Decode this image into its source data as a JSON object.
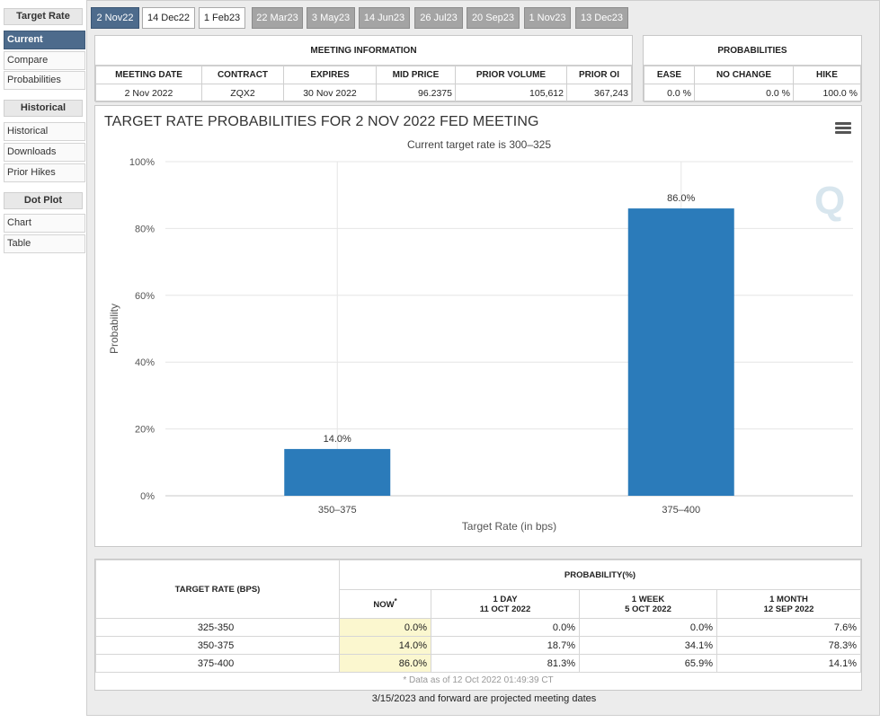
{
  "sidebar": {
    "target_rate_header": "Target Rate",
    "target_rate_items": [
      "Current",
      "Compare",
      "Probabilities"
    ],
    "historical_header": "Historical",
    "historical_items": [
      "Historical",
      "Downloads",
      "Prior Hikes"
    ],
    "dot_plot_header": "Dot Plot",
    "dot_plot_items": [
      "Chart",
      "Table"
    ]
  },
  "tabs": [
    "2 Nov22",
    "14 Dec22",
    "1 Feb23",
    "22 Mar23",
    "3 May23",
    "14 Jun23",
    "26 Jul23",
    "20 Sep23",
    "1 Nov23",
    "13 Dec23"
  ],
  "meeting_info": {
    "title": "MEETING INFORMATION",
    "headers": [
      "MEETING DATE",
      "CONTRACT",
      "EXPIRES",
      "MID PRICE",
      "PRIOR VOLUME",
      "PRIOR OI"
    ],
    "values": [
      "2 Nov 2022",
      "ZQX2",
      "30 Nov 2022",
      "96.2375",
      "105,612",
      "367,243"
    ]
  },
  "probabilities": {
    "title": "PROBABILITIES",
    "headers": [
      "EASE",
      "NO CHANGE",
      "HIKE"
    ],
    "values": [
      "0.0 %",
      "0.0 %",
      "100.0 %"
    ]
  },
  "chart_data": {
    "type": "bar",
    "title": "TARGET RATE PROBABILITIES FOR 2 NOV 2022 FED MEETING",
    "subtitle": "Current target rate is 300–325",
    "categories": [
      "350–375",
      "375–400"
    ],
    "values": [
      14.0,
      86.0
    ],
    "data_labels": [
      "14.0%",
      "86.0%"
    ],
    "xlabel": "Target Rate (in bps)",
    "ylabel": "Probability",
    "ylim": [
      0,
      100
    ],
    "yticks": [
      "0%",
      "20%",
      "40%",
      "60%",
      "80%",
      "100%"
    ],
    "grid": true,
    "bar_color": "#2b7bba"
  },
  "prob_table": {
    "rate_header": "TARGET RATE (BPS)",
    "prob_header": "PROBABILITY(%)",
    "now_label": "NOW",
    "now_mark": "*",
    "columns": [
      {
        "label": "1 DAY",
        "date": "11 OCT 2022"
      },
      {
        "label": "1 WEEK",
        "date": "5 OCT 2022"
      },
      {
        "label": "1 MONTH",
        "date": "12 SEP 2022"
      }
    ],
    "rows": [
      {
        "rate": "325-350",
        "now": "0.0%",
        "day": "0.0%",
        "week": "0.0%",
        "month": "7.6%"
      },
      {
        "rate": "350-375",
        "now": "14.0%",
        "day": "18.7%",
        "week": "34.1%",
        "month": "78.3%"
      },
      {
        "rate": "375-400",
        "now": "86.0%",
        "day": "81.3%",
        "week": "65.9%",
        "month": "14.1%"
      }
    ],
    "as_of": "* Data as of 12 Oct 2022 01:49:39 CT"
  },
  "footnote": "3/15/2023 and forward are projected meeting dates",
  "colors": {
    "active_tab": "#4d6b8c",
    "projected_tab": "#a4a4a4",
    "now_cell": "#fbf7cf"
  }
}
